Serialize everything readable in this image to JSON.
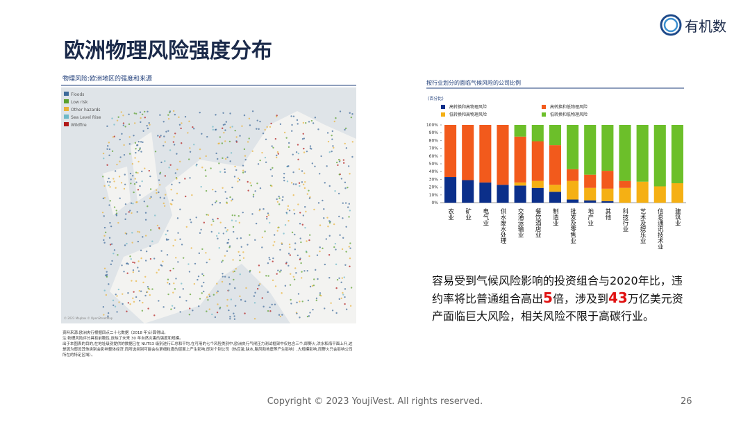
{
  "header": {
    "title": "欧洲物理风险强度分布",
    "logo": "有机数"
  },
  "map": {
    "title": "物理风险:欧洲地区的强度和来源",
    "legend": [
      "Floods",
      "Low risk",
      "Other hazards",
      "Sea Level Rise",
      "Wildfire"
    ],
    "attribution": "© 2023 Mapbox © OpenStreetMap",
    "notes": [
      "资料来源:欧洲央行根据四点二十七数据（2018 年)计算得出。",
      "注:物理风险评分具有前瞻性,反映了未来 30 年自然灾害的强度和规模。",
      "出于本图表的目的,在地址级别提供的数据已在 NUTS3 级别进行汇总和平均,在可用的七个风险类别中,欧洲央行气候压力测试框架中仅包含三个,即野火,洪水和海平面上升,这是因为假设其他类别会影响整体经济,而所选类别可能会在更细粒度的层面上产生影响,即对个别公司（热应激,缺水,飓风和地震等产生影响）,大规模影响,而野火只会影响公司所在的特定区域）。"
    ]
  },
  "chart_data": {
    "type": "stacked_bar",
    "title": "按行业划分的面临气候风险的公司比例",
    "subtitle": "(百分比)",
    "categories": [
      "农业",
      "矿业",
      "电气业",
      "供水废水处理",
      "交通运输业",
      "餐饮酒店业",
      "制造业",
      "批发及零售业",
      "地产业",
      "其他",
      "科技行业",
      "艺术及娱乐业",
      "信息通讯技术业",
      "建筑业"
    ],
    "series": [
      {
        "name": "高转换和高物理风险",
        "color": "#0b2f8a",
        "values": [
          33,
          29,
          26,
          23,
          22,
          19,
          14,
          4,
          3,
          2,
          0,
          0,
          0,
          0
        ]
      },
      {
        "name": "低转换和高物理风险",
        "color": "#f5b014",
        "values": [
          0,
          0,
          0,
          0,
          4,
          9,
          9,
          24,
          16,
          16,
          19,
          27,
          21,
          25
        ]
      },
      {
        "name": "高转换和低物理风险",
        "color": "#f25a1c",
        "values": [
          67,
          71,
          74,
          77,
          59,
          51,
          51,
          15,
          17,
          23,
          9,
          0,
          0,
          0
        ]
      },
      {
        "name": "低转换和低物理风险",
        "color": "#6cbf2a",
        "values": [
          0,
          0,
          0,
          0,
          15,
          21,
          26,
          57,
          64,
          59,
          72,
          73,
          79,
          75
        ]
      }
    ],
    "ylim": [
      0,
      100
    ],
    "yticks": [
      {
        "value": 0,
        "label": "0%"
      },
      {
        "value": 10,
        "label": "10%"
      },
      {
        "value": 20,
        "label": "20%"
      },
      {
        "value": 30,
        "label": "30%"
      },
      {
        "value": 40,
        "label": "40%"
      },
      {
        "value": 50,
        "label": "50%"
      },
      {
        "value": 60,
        "label": "60%"
      },
      {
        "value": 70,
        "label": "70%"
      },
      {
        "value": 80,
        "label": "80%"
      },
      {
        "value": 90,
        "label": "90%"
      },
      {
        "value": 100,
        "label": "100%"
      }
    ]
  },
  "body": {
    "segments": [
      "容易受到气候风险影响的投资组合与2020年比，违约率将比普通组合高出",
      "5",
      "倍，涉及到",
      "43",
      "万亿美元资产面临巨大风险，相关风险不限于高碳行业。"
    ]
  },
  "footer": {
    "copyright": "Copyright © 2023 YoujiVest. All rights reserved.",
    "page": "26"
  }
}
